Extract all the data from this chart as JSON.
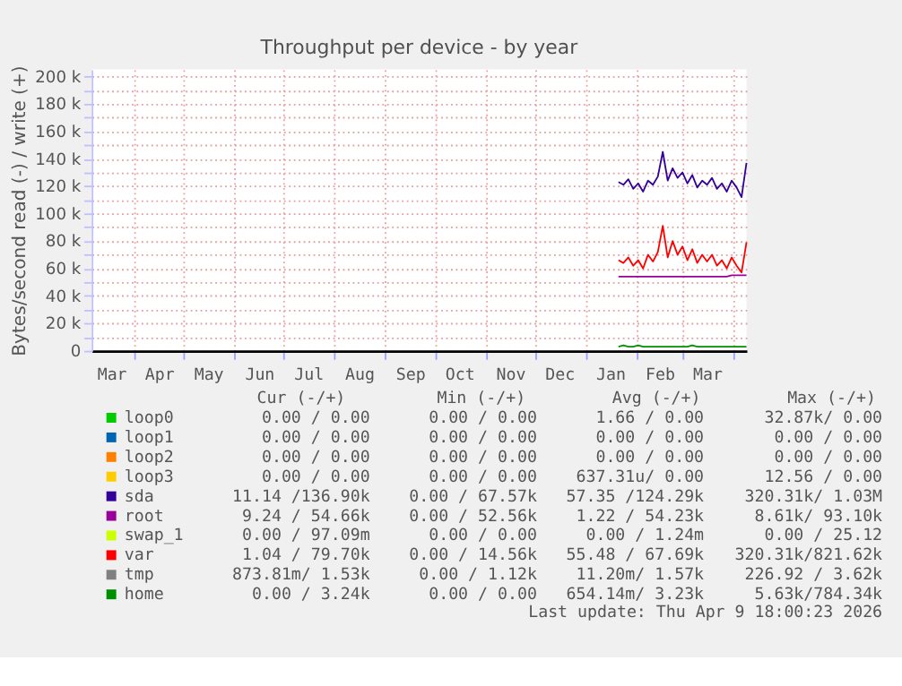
{
  "chart_data": {
    "type": "line",
    "title": "Throughput per device - by year",
    "ylabel": "Bytes/second read (-) / write (+)",
    "x": [
      "2026-01-21",
      "2026-01-24",
      "2026-01-27",
      "2026-01-30",
      "2026-02-02",
      "2026-02-05",
      "2026-02-08",
      "2026-02-11",
      "2026-02-14",
      "2026-02-17",
      "2026-02-20",
      "2026-02-23",
      "2026-02-26",
      "2026-03-01",
      "2026-03-04",
      "2026-03-07",
      "2026-03-10",
      "2026-03-13",
      "2026-03-16",
      "2026-03-19",
      "2026-03-22",
      "2026-03-25",
      "2026-03-28",
      "2026-03-31",
      "2026-04-03",
      "2026-04-06",
      "2026-04-09"
    ],
    "series": [
      {
        "name": "loop0",
        "color": "#00cc00",
        "values": [
          null,
          null,
          null,
          null,
          null,
          null,
          null,
          null,
          null,
          null,
          null,
          null,
          null,
          null,
          null,
          null,
          null,
          null,
          null,
          null,
          null,
          null,
          null,
          null,
          null,
          null,
          null
        ]
      },
      {
        "name": "loop1",
        "color": "#0066b3",
        "values": [
          null,
          null,
          null,
          null,
          null,
          null,
          null,
          null,
          null,
          null,
          null,
          null,
          null,
          null,
          null,
          null,
          null,
          null,
          null,
          null,
          null,
          null,
          null,
          null,
          null,
          null,
          null
        ]
      },
      {
        "name": "loop2",
        "color": "#ff8000",
        "values": [
          null,
          null,
          null,
          null,
          null,
          null,
          null,
          null,
          null,
          null,
          null,
          null,
          null,
          null,
          null,
          null,
          null,
          null,
          null,
          null,
          null,
          null,
          null,
          null,
          null,
          null,
          null
        ]
      },
      {
        "name": "loop3",
        "color": "#ffcc00",
        "values": [
          null,
          null,
          null,
          null,
          null,
          null,
          null,
          null,
          null,
          null,
          null,
          null,
          null,
          null,
          null,
          null,
          null,
          null,
          null,
          null,
          null,
          null,
          null,
          null,
          null,
          null,
          null
        ]
      },
      {
        "name": "sda",
        "color": "#330099",
        "values": [
          123000,
          121000,
          125000,
          118000,
          122000,
          116000,
          124000,
          121000,
          127000,
          145000,
          124000,
          133000,
          126000,
          130000,
          122000,
          128000,
          119000,
          124000,
          121000,
          126000,
          118000,
          122000,
          116000,
          124000,
          119000,
          112000,
          137000
        ]
      },
      {
        "name": "root",
        "color": "#990099",
        "values": [
          54000,
          54000,
          54000,
          54000,
          54000,
          54000,
          54000,
          54000,
          54000,
          54000,
          54000,
          54000,
          54000,
          54000,
          54000,
          54000,
          54000,
          54000,
          54000,
          54000,
          54000,
          54000,
          54000,
          55000,
          55000,
          55000,
          55000
        ]
      },
      {
        "name": "swap_1",
        "color": "#ccff00",
        "values": [
          null,
          null,
          null,
          null,
          null,
          null,
          null,
          null,
          null,
          null,
          null,
          null,
          null,
          null,
          null,
          null,
          null,
          null,
          null,
          null,
          null,
          null,
          null,
          null,
          null,
          null,
          null
        ]
      },
      {
        "name": "var",
        "color": "#ff0000",
        "values": [
          66000,
          64000,
          68000,
          62000,
          66000,
          60000,
          70000,
          65000,
          72000,
          91000,
          68000,
          80000,
          70000,
          76000,
          66000,
          74000,
          64000,
          70000,
          65000,
          70000,
          62000,
          66000,
          60000,
          68000,
          62000,
          57000,
          79000
        ]
      },
      {
        "name": "tmp",
        "color": "#808080",
        "values": [
          null,
          null,
          null,
          null,
          null,
          null,
          null,
          null,
          null,
          null,
          null,
          null,
          null,
          null,
          null,
          null,
          null,
          null,
          null,
          null,
          null,
          null,
          null,
          null,
          null,
          null,
          null
        ]
      },
      {
        "name": "home",
        "color": "#008f00",
        "values": [
          3000,
          4000,
          3000,
          3000,
          4000,
          3000,
          3000,
          3000,
          3000,
          3000,
          3000,
          3000,
          3000,
          3000,
          3000,
          4000,
          3000,
          3000,
          3000,
          3000,
          3000,
          3000,
          3000,
          3000,
          3000,
          3000,
          3000
        ]
      }
    ],
    "xlim": [
      "2025-03-06",
      "2026-04-09"
    ],
    "xticks": [
      {
        "value": "2025-03-18",
        "label": "Mar"
      },
      {
        "value": "2025-04-01",
        "label": null
      },
      {
        "value": "2025-04-16",
        "label": "Apr"
      },
      {
        "value": "2025-05-01",
        "label": null
      },
      {
        "value": "2025-05-16",
        "label": "May"
      },
      {
        "value": "2025-06-01",
        "label": null
      },
      {
        "value": "2025-06-16",
        "label": "Jun"
      },
      {
        "value": "2025-07-01",
        "label": null
      },
      {
        "value": "2025-07-16",
        "label": "Jul"
      },
      {
        "value": "2025-08-01",
        "label": null
      },
      {
        "value": "2025-08-16",
        "label": "Aug"
      },
      {
        "value": "2025-09-01",
        "label": null
      },
      {
        "value": "2025-09-16",
        "label": "Sep"
      },
      {
        "value": "2025-10-01",
        "label": null
      },
      {
        "value": "2025-10-16",
        "label": "Oct"
      },
      {
        "value": "2025-11-01",
        "label": null
      },
      {
        "value": "2025-11-16",
        "label": "Nov"
      },
      {
        "value": "2025-12-01",
        "label": null
      },
      {
        "value": "2025-12-16",
        "label": "Dec"
      },
      {
        "value": "2026-01-01",
        "label": null
      },
      {
        "value": "2026-01-16",
        "label": "Jan"
      },
      {
        "value": "2026-02-01",
        "label": null
      },
      {
        "value": "2026-02-15",
        "label": "Feb"
      },
      {
        "value": "2026-03-01",
        "label": null
      },
      {
        "value": "2026-03-16",
        "label": "Mar"
      },
      {
        "value": "2026-04-01",
        "label": null
      }
    ],
    "ylim": [
      0,
      205000
    ],
    "yticks": [
      0,
      {
        "value": 10000,
        "label": null
      },
      {
        "value": 20000,
        "label": "20 k"
      },
      {
        "value": 30000,
        "label": null
      },
      {
        "value": 40000,
        "label": "40 k"
      },
      {
        "value": 50000,
        "label": null
      },
      {
        "value": 60000,
        "label": "60 k"
      },
      {
        "value": 70000,
        "label": null
      },
      {
        "value": 80000,
        "label": "80 k"
      },
      {
        "value": 90000,
        "label": null
      },
      {
        "value": 100000,
        "label": "100 k"
      },
      {
        "value": 110000,
        "label": null
      },
      {
        "value": 120000,
        "label": "120 k"
      },
      {
        "value": 130000,
        "label": null
      },
      {
        "value": 140000,
        "label": "140 k"
      },
      {
        "value": 150000,
        "label": null
      },
      {
        "value": 160000,
        "label": "160 k"
      },
      {
        "value": 170000,
        "label": null
      },
      {
        "value": 180000,
        "label": "180 k"
      },
      {
        "value": 190000,
        "label": null
      },
      {
        "value": 200000,
        "label": "200 k"
      }
    ],
    "grid": true,
    "legend": "bottom",
    "line_style": "solid",
    "annotations": [
      "Cur (-/+)",
      "Min (-/+)",
      "Avg (-/+)",
      "Max (-/+)",
      "0.00 /  0.00",
      "0.00 /  0.00",
      "1.66 /  0.00",
      "32.87k/  0.00",
      "0.00 /  0.00",
      "0.00 /  0.00",
      "0.00 /  0.00",
      "0.00 /  0.00",
      "0.00 /  0.00",
      "0.00 /  0.00",
      "0.00 /  0.00",
      "0.00 /  0.00",
      "0.00 /  0.00",
      "0.00 /  0.00",
      "637.31u/  0.00",
      "12.56 /  0.00",
      "11.14 /136.90k",
      "0.00 / 67.57k",
      "57.35 /124.29k",
      "320.31k/  1.03M",
      "9.24 / 54.66k",
      "0.00 / 52.56k",
      "1.22 / 54.23k",
      "8.61k/ 93.10k",
      "0.00 / 97.09m",
      "0.00 /  0.00",
      "0.00 /  1.24m",
      "0.00 / 25.12",
      "1.04 / 79.70k",
      "0.00 / 14.56k",
      "55.48 / 67.69k",
      "320.31k/821.62k",
      "873.81m/  1.53k",
      "0.00 /  1.12k",
      "11.20m/  1.57k",
      "226.92 /  3.62k",
      "0.00 /  3.24k",
      "0.00 /  0.00",
      "654.14m/  3.23k",
      "5.63k/784.34k",
      "Last update: Thu Apr  9 18:00:23 2026"
    ]
  }
}
